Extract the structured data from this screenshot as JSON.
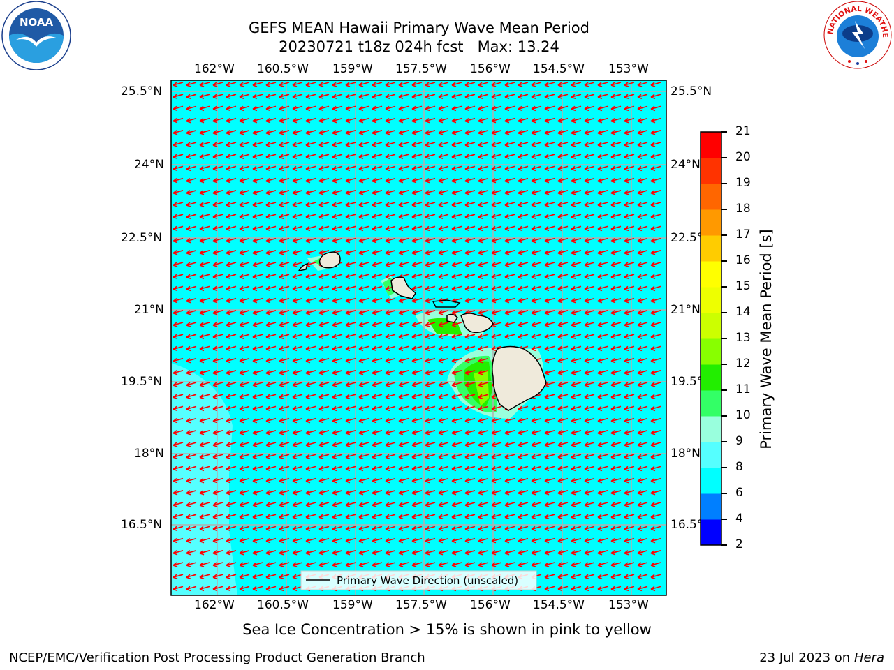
{
  "title": {
    "line1": "GEFS MEAN Hawaii Primary Wave Mean Period",
    "line2": "20230721 t18z 024h fcst   Max: 13.24"
  },
  "logos": {
    "noaa_text": "NOAA",
    "noaa_ring": "NATIONAL OCEANIC AND ATMOSPHERIC ADMINISTRATION · U.S. DEPARTMENT OF COMMERCE",
    "nws_ring": "NATIONAL WEATHER SERVICE"
  },
  "map": {
    "lon_labels": [
      "162°W",
      "160.5°W",
      "159°W",
      "157.5°W",
      "156°W",
      "154.5°W",
      "153°W"
    ],
    "lon_values": [
      -162,
      -160.5,
      -159,
      -157.5,
      -156,
      -154.5,
      -153
    ],
    "lat_labels": [
      "25.5°N",
      "24°N",
      "22.5°N",
      "21°N",
      "19.5°N",
      "18°N",
      "16.5°N"
    ],
    "lat_values": [
      25.5,
      24,
      22.5,
      21,
      19.5,
      18,
      16.5
    ],
    "lon_range": [
      -163,
      -152.6
    ],
    "lat_range": [
      15,
      25.8
    ],
    "ocean_color": "#00ffff",
    "arrow_color": "#ff0000",
    "legend_label": "Primary Wave Direction (unscaled)"
  },
  "colorbar": {
    "label": "Primary Wave Mean Period [s]",
    "ticks": [
      "2",
      "4",
      "6",
      "8",
      "9",
      "10",
      "11",
      "12",
      "13",
      "14",
      "15",
      "16",
      "17",
      "18",
      "19",
      "20",
      "21"
    ],
    "colors": [
      "#0000ff",
      "#007fff",
      "#00ffff",
      "#55ffff",
      "#99ffdd",
      "#33ff66",
      "#22ee00",
      "#88ff00",
      "#ccff00",
      "#eeff00",
      "#ffff00",
      "#ffcc00",
      "#ff9900",
      "#ff6600",
      "#ff3300",
      "#ff0000"
    ]
  },
  "sea_ice_note": "Sea Ice Concentration > 15% is shown in pink to yellow",
  "footer": {
    "left": "NCEP/EMC/Verification Post Processing Product Generation Branch",
    "date": "23 Jul 2023 on ",
    "host": "Hera"
  }
}
